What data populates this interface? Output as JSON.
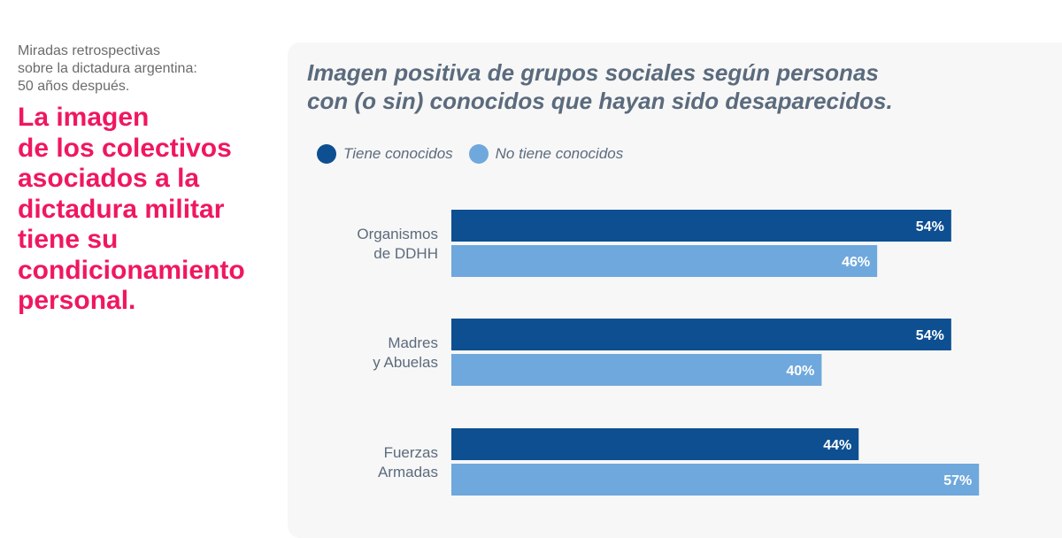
{
  "intro": {
    "subtitle": "Miradas retrospectivas\nsobre la dictadura argentina:\n50 años después.",
    "headline": "La imagen\nde los colectivos\nasociados a la\ndictadura militar\ntiene su\ncondicionamiento\npersonal."
  },
  "chart_data": {
    "type": "bar",
    "orientation": "horizontal",
    "title": "Imagen positiva de grupos sociales según personas\ncon (o sin) conocidos que hayan sido desaparecidos.",
    "categories": [
      [
        "Organismos",
        "de DDHH"
      ],
      [
        "Madres",
        "y Abuelas"
      ],
      [
        "Fuerzas",
        "Armadas"
      ]
    ],
    "series": [
      {
        "name": "Tiene conocidos",
        "color": "#0d4f91",
        "values": [
          54,
          54,
          44
        ]
      },
      {
        "name": "No tiene conocidos",
        "color": "#6fa8dc",
        "values": [
          46,
          40,
          57
        ]
      }
    ],
    "value_suffix": "%",
    "xlim": [
      0,
      100
    ],
    "grid": false,
    "legend_position": "top-left"
  }
}
